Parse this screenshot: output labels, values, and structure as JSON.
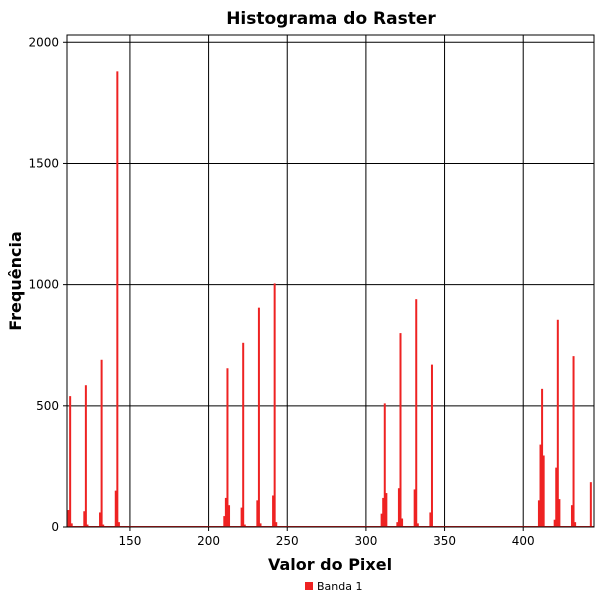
{
  "chart_data": {
    "type": "bar",
    "title": "Histograma do Raster",
    "xlabel": "Valor do Pixel",
    "ylabel": "Frequência",
    "xlim": [
      110,
      445
    ],
    "ylim": [
      0,
      2030
    ],
    "xticks": [
      150,
      200,
      250,
      300,
      350,
      400
    ],
    "yticks": [
      0,
      500,
      1000,
      1500,
      2000
    ],
    "grid": true,
    "legend_position": "bottom-center",
    "series": [
      {
        "name": "Banda 1",
        "color": "#ee2222",
        "points": [
          [
            112,
            540
          ],
          [
            111,
            70
          ],
          [
            113,
            15
          ],
          [
            122,
            585
          ],
          [
            121,
            65
          ],
          [
            123,
            10
          ],
          [
            132,
            690
          ],
          [
            131,
            60
          ],
          [
            133,
            10
          ],
          [
            142,
            1880
          ],
          [
            141,
            150
          ],
          [
            143,
            20
          ],
          [
            212,
            655
          ],
          [
            211,
            120
          ],
          [
            213,
            90
          ],
          [
            210,
            45
          ],
          [
            222,
            760
          ],
          [
            221,
            80
          ],
          [
            223,
            10
          ],
          [
            232,
            905
          ],
          [
            231,
            110
          ],
          [
            233,
            15
          ],
          [
            242,
            1005
          ],
          [
            241,
            130
          ],
          [
            243,
            20
          ],
          [
            312,
            510
          ],
          [
            311,
            120
          ],
          [
            313,
            140
          ],
          [
            310,
            55
          ],
          [
            322,
            800
          ],
          [
            321,
            160
          ],
          [
            323,
            35
          ],
          [
            320,
            20
          ],
          [
            332,
            940
          ],
          [
            331,
            155
          ],
          [
            333,
            15
          ],
          [
            342,
            670
          ],
          [
            341,
            60
          ],
          [
            412,
            570
          ],
          [
            411,
            340
          ],
          [
            413,
            295
          ],
          [
            410,
            110
          ],
          [
            422,
            855
          ],
          [
            421,
            245
          ],
          [
            423,
            115
          ],
          [
            420,
            30
          ],
          [
            432,
            705
          ],
          [
            431,
            90
          ],
          [
            433,
            20
          ],
          [
            443,
            185
          ]
        ]
      }
    ]
  }
}
